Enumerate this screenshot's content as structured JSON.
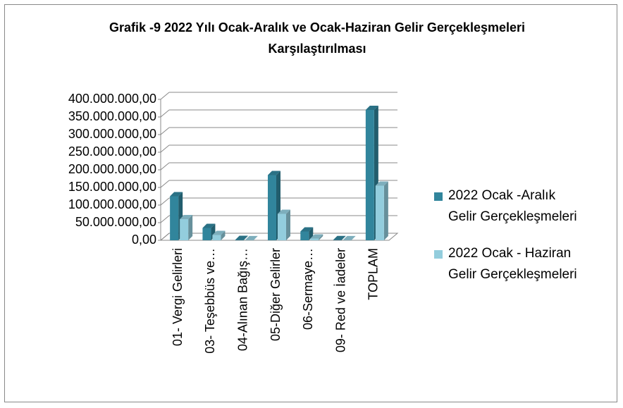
{
  "chart_data": {
    "type": "bar3d",
    "title": "Grafik -9 2022 Yılı Ocak-Aralık ve Ocak-Haziran Gelir Gerçekleşmeleri Karşılaştırılması",
    "categories": [
      "01- Vergi Gelirleri",
      "03- Teşebbüs ve…",
      "04-Alınan Bağış…",
      "05-Diğer Gelirler",
      "06-Sermaye…",
      "09- Red ve İadeler",
      "TOPLAM"
    ],
    "series": [
      {
        "name": "2022 Ocak -Aralık Gelir Gerçekleşmeleri",
        "color": "#31859c",
        "values": [
          125000000,
          35000000,
          1000000,
          185000000,
          25000000,
          500000,
          370000000
        ]
      },
      {
        "name": "2022 Ocak - Haziran Gelir Gerçekleşmeleri",
        "color": "#93cddd",
        "values": [
          60000000,
          15000000,
          300000,
          75000000,
          5000000,
          200000,
          155000000
        ]
      }
    ],
    "ylim": [
      0,
      400000000
    ],
    "yticks": [
      {
        "value": 0,
        "label": "0,00"
      },
      {
        "value": 50000000,
        "label": "50.000.000,00"
      },
      {
        "value": 100000000,
        "label": "100.000.000,00"
      },
      {
        "value": 150000000,
        "label": "150.000.000,00"
      },
      {
        "value": 200000000,
        "label": "200.000.000,00"
      },
      {
        "value": 250000000,
        "label": "250.000.000,00"
      },
      {
        "value": 300000000,
        "label": "300.000.000,00"
      },
      {
        "value": 350000000,
        "label": "350.000.000,00"
      },
      {
        "value": 400000000,
        "label": "400.000.000,00"
      }
    ],
    "grid": true,
    "legend": "right"
  }
}
